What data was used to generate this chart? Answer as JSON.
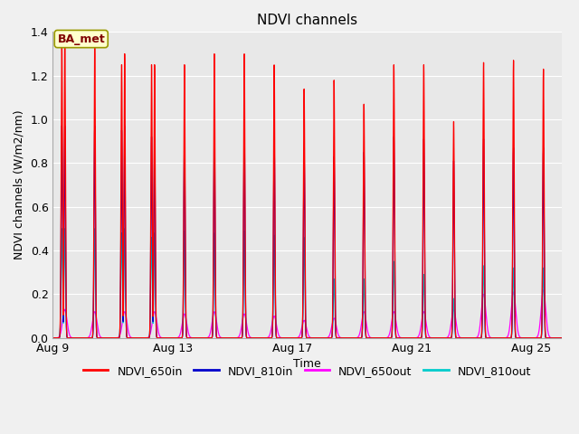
{
  "title": "NDVI channels",
  "xlabel": "Time",
  "ylabel": "NDVI channels (W/m2/nm)",
  "ylim": [
    0.0,
    1.4
  ],
  "yticks": [
    0.0,
    0.2,
    0.4,
    0.6,
    0.8,
    1.0,
    1.2,
    1.4
  ],
  "background_color": "#f0f0f0",
  "plot_bg_color": "#e8e8e8",
  "colors": {
    "NDVI_650in": "#ff0000",
    "NDVI_810in": "#0000cc",
    "NDVI_650out": "#ff00ff",
    "NDVI_810out": "#00cccc"
  },
  "annotation_text": "BA_met",
  "annotation_bg": "#ffffcc",
  "annotation_border": "#999900",
  "xtick_labels": [
    "Aug 9",
    "Aug 13",
    "Aug 17",
    "Aug 21",
    "Aug 25"
  ],
  "xtick_positions": [
    0,
    4,
    8,
    12,
    16
  ],
  "figsize": [
    6.4,
    4.8
  ],
  "dpi": 100,
  "num_days": 17,
  "peak_650in": [
    1.38,
    1.35,
    1.3,
    1.25,
    1.25,
    1.3,
    1.3,
    1.25,
    1.14,
    1.18,
    1.07,
    1.25,
    1.25,
    0.99,
    1.26,
    1.27,
    1.23
  ],
  "peak_810in": [
    0.97,
    0.97,
    0.97,
    0.95,
    0.92,
    0.93,
    0.95,
    0.91,
    0.86,
    0.83,
    0.85,
    0.92,
    0.91,
    0.81,
    0.91,
    0.87,
    0.87
  ],
  "peak_650out": [
    0.13,
    0.12,
    0.12,
    0.12,
    0.11,
    0.12,
    0.11,
    0.1,
    0.08,
    0.09,
    0.12,
    0.12,
    0.12,
    0.13,
    0.2,
    0.21,
    0.22
  ],
  "peak_810out": [
    0.5,
    0.5,
    0.5,
    0.48,
    0.49,
    0.48,
    0.49,
    0.47,
    0.46,
    0.27,
    0.27,
    0.35,
    0.29,
    0.18,
    0.33,
    0.32,
    0.32
  ],
  "peak2_650in": [
    1.35,
    0.0,
    1.25,
    1.25,
    0.0,
    0.0,
    0.0,
    0.0,
    0.0,
    0.0,
    0.0,
    0.0,
    0.0,
    0.0,
    0.0,
    0.0,
    0.0
  ],
  "peak2_810in": [
    0.97,
    0.0,
    0.95,
    0.92,
    0.0,
    0.0,
    0.0,
    0.0,
    0.0,
    0.0,
    0.0,
    0.0,
    0.0,
    0.0,
    0.0,
    0.0,
    0.0
  ],
  "peak2_810out": [
    0.5,
    0.0,
    0.48,
    0.46,
    0.0,
    0.0,
    0.0,
    0.0,
    0.0,
    0.0,
    0.0,
    0.0,
    0.0,
    0.0,
    0.0,
    0.0,
    0.0
  ],
  "peak2_650out": [
    0.12,
    0.0,
    0.12,
    0.11,
    0.0,
    0.0,
    0.0,
    0.0,
    0.0,
    0.0,
    0.0,
    0.0,
    0.0,
    0.0,
    0.0,
    0.0,
    0.0
  ]
}
